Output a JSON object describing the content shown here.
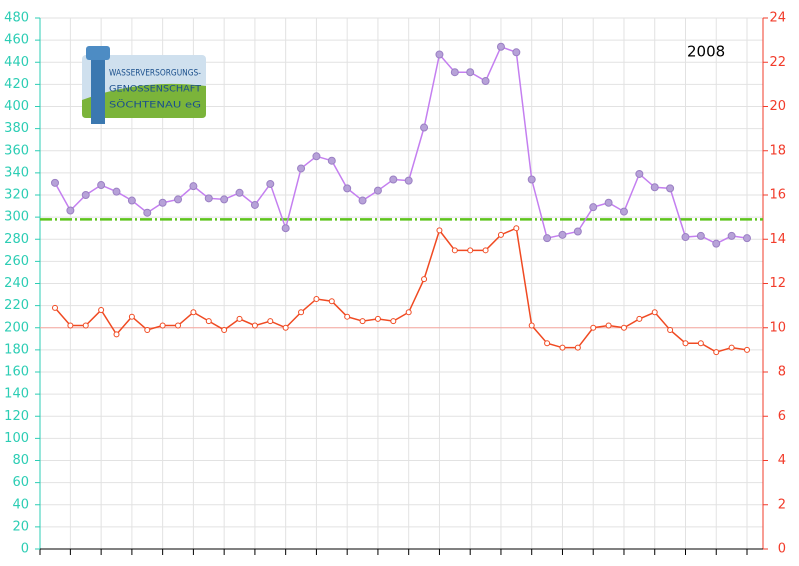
{
  "chart_data": {
    "type": "line",
    "annotation": "2008",
    "logo_text": [
      "WASSERVERSORGUNGS-",
      "GENOSSENSCHAFT",
      "SÖCHTENAU eG"
    ],
    "categories": [
      null,
      null,
      null,
      null,
      null,
      null,
      null,
      null,
      null,
      null,
      null,
      null,
      null,
      null,
      null,
      null,
      null,
      null,
      null,
      null,
      null,
      null,
      null,
      null,
      null,
      null,
      null,
      null,
      null,
      null,
      null,
      null,
      null,
      null,
      null,
      null,
      null,
      null,
      null,
      null,
      null,
      null,
      null,
      null,
      null,
      null
    ],
    "ylim": [
      0,
      480
    ],
    "yticks": [
      0,
      20,
      40,
      60,
      80,
      100,
      120,
      140,
      160,
      180,
      200,
      220,
      240,
      260,
      280,
      300,
      320,
      340,
      360,
      380,
      400,
      420,
      440,
      460,
      480
    ],
    "y2lim": [
      0,
      24
    ],
    "y2ticks": [
      0,
      2,
      4,
      6,
      8,
      10,
      12,
      14,
      16,
      18,
      20,
      22,
      24
    ],
    "grid": true,
    "left_axis_color": "#2ccdb4",
    "right_axis_color": "#f23b2a",
    "reference_lines": [
      {
        "value": 298,
        "color": "#5ec41c",
        "style": "dashdot"
      },
      {
        "value": 200,
        "color": "#f7a7a0",
        "style": "solid"
      }
    ],
    "series": [
      {
        "color": "#c47ff0",
        "marker": "#b7a2d8",
        "values": [
          331,
          306,
          320,
          329,
          323,
          315,
          304,
          313,
          316,
          328,
          317,
          316,
          322,
          311,
          330,
          290,
          344,
          355,
          351,
          326,
          315,
          324,
          334,
          333,
          381,
          447,
          431,
          431,
          423,
          454,
          449,
          334,
          281,
          284,
          287,
          309,
          313,
          305,
          339,
          327,
          326,
          282,
          283,
          276,
          283,
          281
        ]
      },
      {
        "color": "#f04a22",
        "marker": "#ffffff",
        "axis": "y2",
        "values": [
          10.9,
          10.1,
          10.1,
          10.8,
          9.7,
          10.5,
          9.9,
          10.1,
          10.1,
          10.7,
          10.3,
          9.9,
          10.4,
          10.1,
          10.3,
          10.0,
          10.7,
          11.3,
          11.2,
          10.5,
          10.3,
          10.4,
          10.3,
          10.7,
          12.2,
          14.4,
          13.5,
          13.5,
          13.5,
          14.2,
          14.5,
          10.1,
          9.3,
          9.1,
          9.1,
          10.0,
          10.1,
          10.0,
          10.4,
          10.7,
          9.9,
          9.3,
          9.3,
          8.9,
          9.1,
          9.0
        ]
      }
    ]
  }
}
